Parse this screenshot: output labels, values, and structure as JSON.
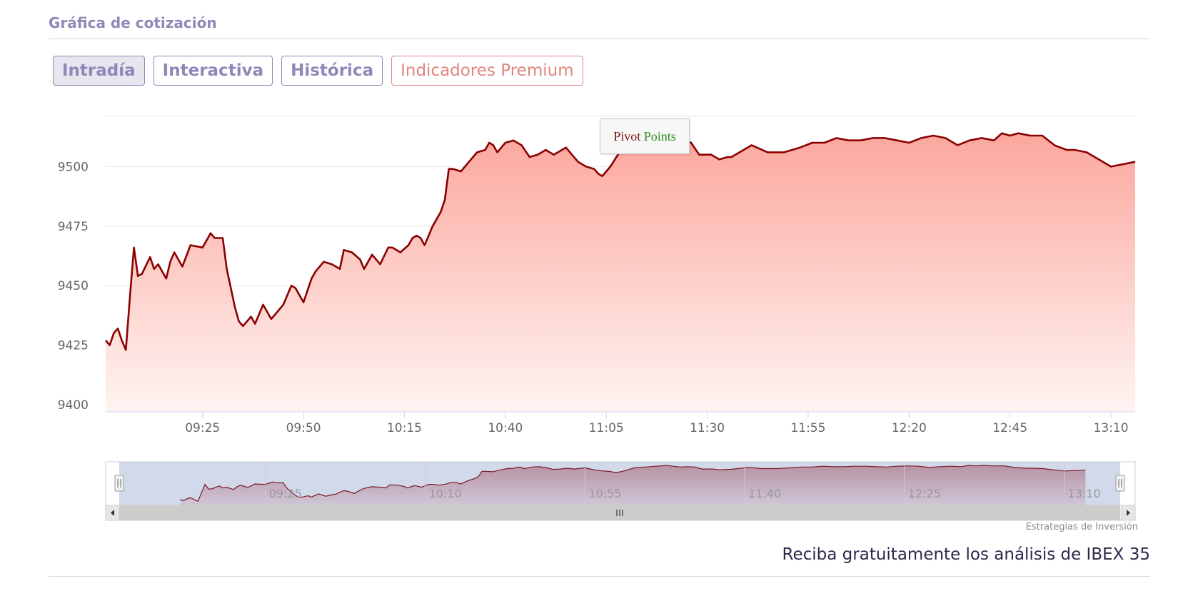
{
  "header": {
    "title": "Gráfica de cotización"
  },
  "tabs": [
    {
      "label": "Intradía",
      "active": true
    },
    {
      "label": "Interactiva",
      "active": false
    },
    {
      "label": "Histórica",
      "active": false
    },
    {
      "label": "Indicadores Premium",
      "active": false
    }
  ],
  "tooltip": {
    "word1": "Pivot",
    "word2": "Points"
  },
  "credits": "Estrategias de Inversión",
  "cta": "Reciba gratuitamente los análisis de IBEX 35",
  "colors": {
    "line": "#8b0000",
    "fill_top": "#fba79d",
    "fill_bottom": "#fff4f2",
    "accent": "#8d88b8",
    "premium": "#e0857f",
    "navigator_mask": "#cdd5e8"
  },
  "chart_data": {
    "type": "area",
    "title": "",
    "xlabel": "",
    "ylabel": "",
    "ylim": [
      9397,
      9522
    ],
    "y_ticks": [
      9400,
      9425,
      9450,
      9475,
      9500
    ],
    "x_range": [
      "09:01",
      "13:16"
    ],
    "x_ticks": [
      "09:25",
      "09:50",
      "10:15",
      "10:40",
      "11:05",
      "11:30",
      "11:55",
      "12:20",
      "12:45",
      "13:10"
    ],
    "navigator": {
      "x_range": [
        "08:40",
        "13:30"
      ],
      "x_ticks": [
        "09:25",
        "10:10",
        "10:55",
        "11:40",
        "12:25",
        "13:10"
      ]
    },
    "grid": true,
    "legend": "none",
    "series": [
      {
        "x": [
          "09:01",
          "09:02",
          "09:03",
          "09:04",
          "09:05",
          "09:06",
          "09:07",
          "09:08",
          "09:09",
          "09:10",
          "09:12",
          "09:13",
          "09:14",
          "09:16",
          "09:17",
          "09:18",
          "09:20",
          "09:22",
          "09:25",
          "09:27",
          "09:28",
          "09:30",
          "09:31",
          "09:32",
          "09:33",
          "09:34",
          "09:35",
          "09:37",
          "09:38",
          "09:40",
          "09:42",
          "09:44",
          "09:45",
          "09:47",
          "09:48",
          "09:50",
          "09:52",
          "09:53",
          "09:55",
          "09:57",
          "09:59",
          "10:00",
          "10:02",
          "10:04",
          "10:05",
          "10:07",
          "10:09",
          "10:11",
          "10:12",
          "10:14",
          "10:16",
          "10:17",
          "10:18",
          "10:19",
          "10:20",
          "10:21",
          "10:22",
          "10:24",
          "10:25",
          "10:26",
          "10:27",
          "10:29",
          "10:30",
          "10:31",
          "10:33",
          "10:35",
          "10:36",
          "10:37",
          "10:38",
          "10:39",
          "10:40",
          "10:42",
          "10:44",
          "10:46",
          "10:48",
          "10:50",
          "10:52",
          "10:55",
          "10:58",
          "11:00",
          "11:02",
          "11:03",
          "11:04",
          "11:06",
          "11:09",
          "11:12",
          "11:15",
          "11:18",
          "11:20",
          "11:22",
          "11:24",
          "11:26",
          "11:28",
          "11:31",
          "11:33",
          "11:35",
          "11:36",
          "11:38",
          "11:41",
          "11:45",
          "11:49",
          "11:53",
          "11:56",
          "11:59",
          "12:02",
          "12:05",
          "12:08",
          "12:11",
          "12:14",
          "12:17",
          "12:20",
          "12:23",
          "12:26",
          "12:29",
          "12:32",
          "12:35",
          "12:38",
          "12:41",
          "12:43",
          "12:45",
          "12:47",
          "12:50",
          "12:53",
          "12:56",
          "12:59",
          "13:01",
          "13:04",
          "13:07",
          "13:10",
          "13:13",
          "13:16"
        ],
        "y": [
          9427,
          9425,
          9430,
          9432,
          9427,
          9423,
          9445,
          9466,
          9454,
          9455,
          9462,
          9457,
          9459,
          9453,
          9460,
          9464,
          9458,
          9467,
          9466,
          9472,
          9470,
          9470,
          9457,
          9449,
          9441,
          9435,
          9433,
          9437,
          9434,
          9442,
          9436,
          9440,
          9442,
          9450,
          9449,
          9443,
          9453,
          9456,
          9460,
          9459,
          9457,
          9465,
          9464,
          9461,
          9457,
          9463,
          9459,
          9466,
          9466,
          9464,
          9467,
          9470,
          9471,
          9470,
          9467,
          9471,
          9475,
          9481,
          9486,
          9499,
          9499,
          9498,
          9500,
          9502,
          9506,
          9507,
          9510,
          9509,
          9506,
          9508,
          9510,
          9511,
          9509,
          9504,
          9505,
          9507,
          9505,
          9508,
          9502,
          9500,
          9499,
          9497,
          9496,
          9500,
          9508,
          9510,
          9512,
          9514,
          9512,
          9510,
          9511,
          9510,
          9505,
          9505,
          9503,
          9504,
          9504,
          9506,
          9509,
          9506,
          9506,
          9508,
          9510,
          9510,
          9512,
          9511,
          9511,
          9512,
          9512,
          9511,
          9510,
          9512,
          9513,
          9512,
          9509,
          9511,
          9512,
          9511,
          9514,
          9513,
          9514,
          9513,
          9513,
          9509,
          9507,
          9507,
          9506,
          9503,
          9500,
          9501,
          9502
        ]
      }
    ]
  }
}
